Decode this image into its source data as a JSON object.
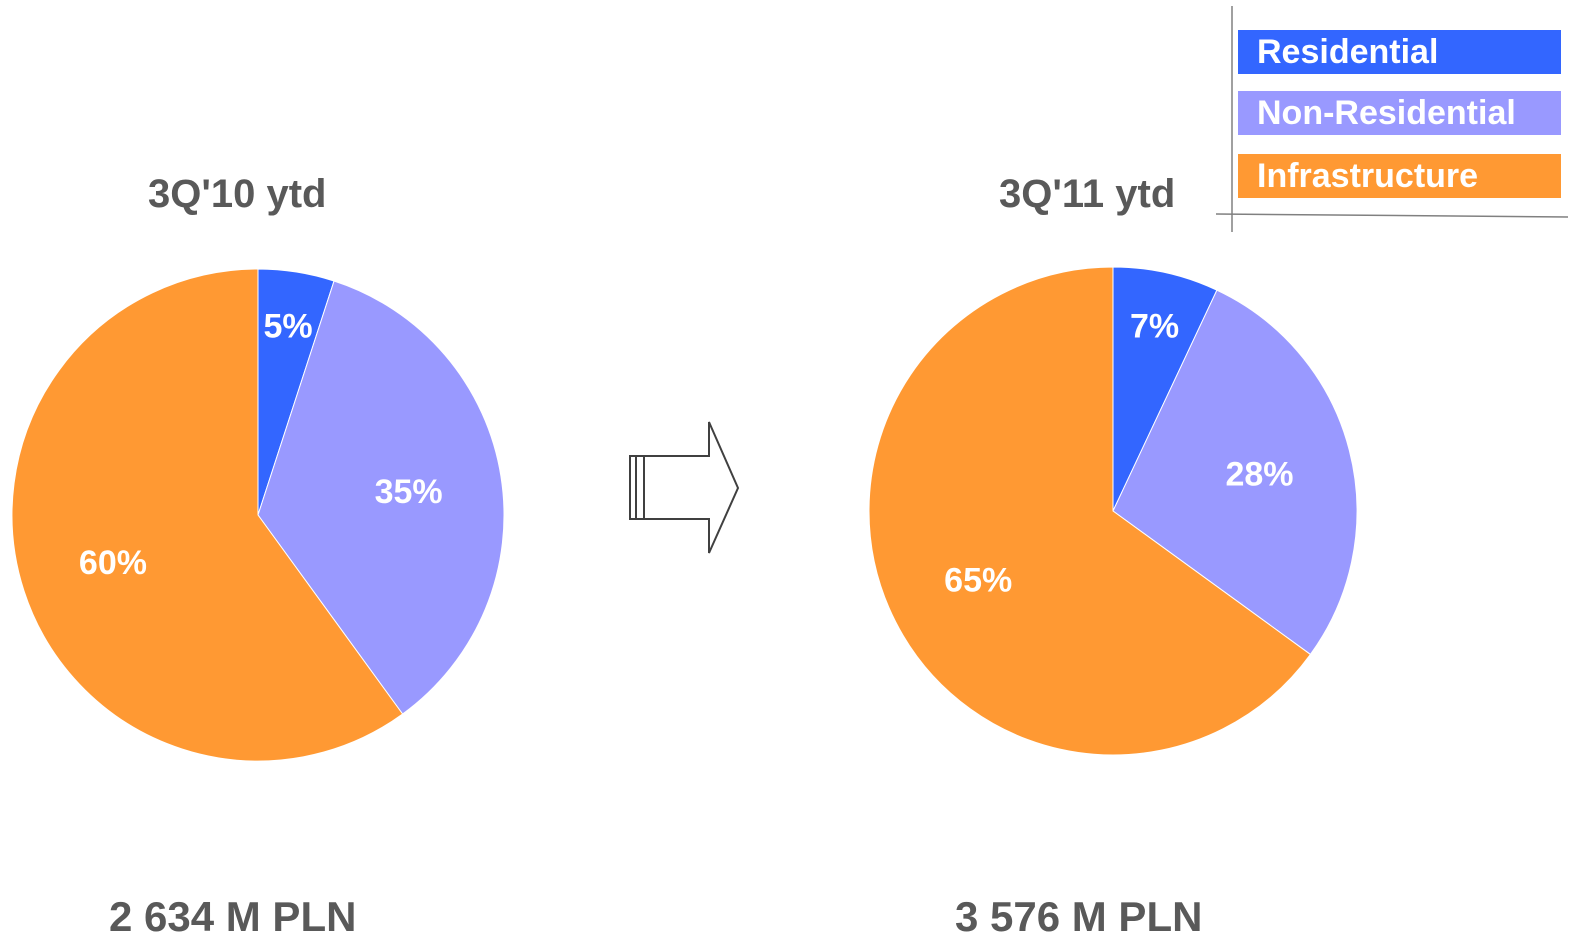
{
  "chart_data": [
    {
      "type": "pie",
      "title": "3Q'10 ytd",
      "total_label": "2 634 M PLN",
      "slices": [
        {
          "name": "Residential",
          "value": 5,
          "label": "5%",
          "color": "#3366FF"
        },
        {
          "name": "Non-Residential",
          "value": 35,
          "label": "35%",
          "color": "#9999FF"
        },
        {
          "name": "Infrastructure",
          "value": 60,
          "label": "60%",
          "color": "#FF9933"
        }
      ]
    },
    {
      "type": "pie",
      "title": "3Q'11 ytd",
      "total_label": "3 576 M PLN",
      "slices": [
        {
          "name": "Residential",
          "value": 7,
          "label": "7%",
          "color": "#3366FF"
        },
        {
          "name": "Non-Residential",
          "value": 28,
          "label": "28%",
          "color": "#9999FF"
        },
        {
          "name": "Infrastructure",
          "value": 65,
          "label": "65%",
          "color": "#FF9933"
        }
      ]
    }
  ],
  "legend": {
    "placement": "top-right",
    "items": [
      {
        "label": "Residential",
        "color": "#3366FF"
      },
      {
        "label": "Non-Residential",
        "color": "#9999FF"
      },
      {
        "label": "Infrastructure",
        "color": "#FF9933"
      }
    ]
  },
  "arrow_icon": "right-arrow-icon"
}
